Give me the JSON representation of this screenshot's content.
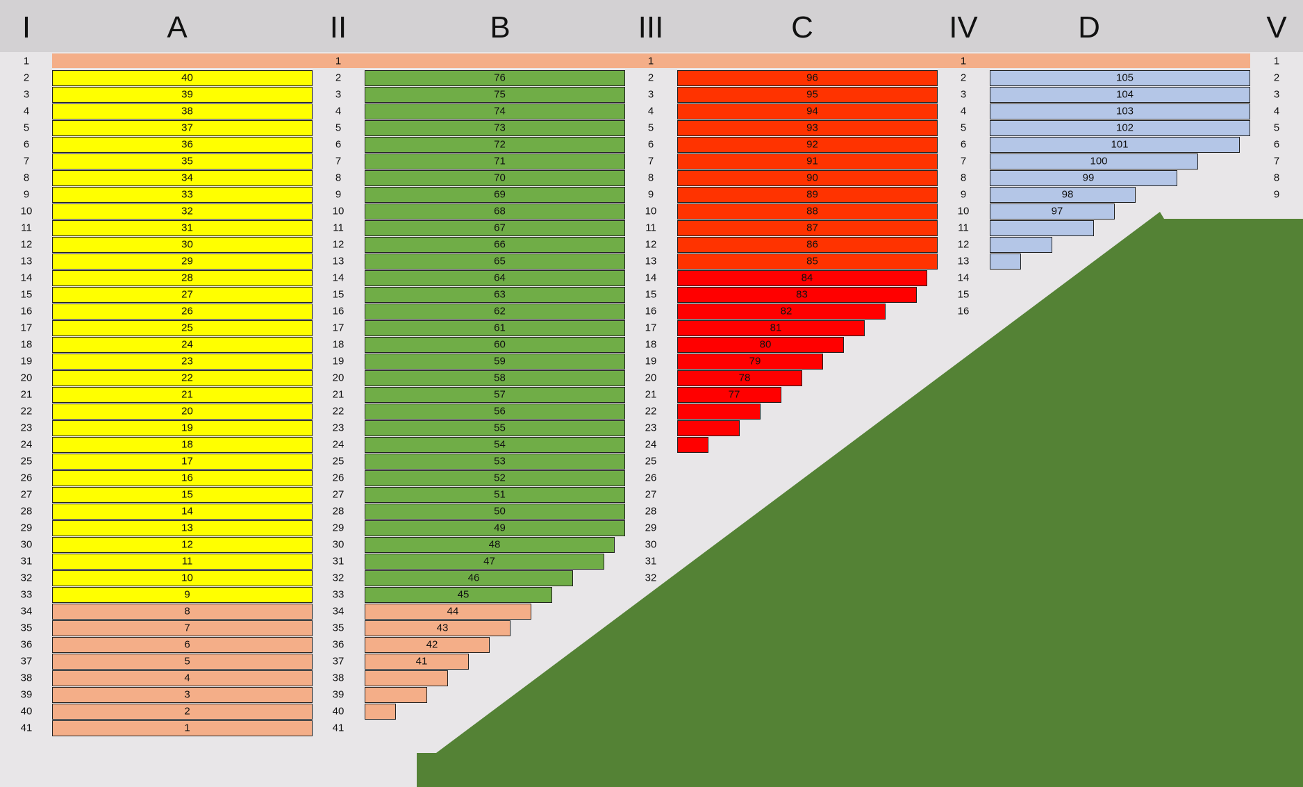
{
  "headers": [
    "I",
    "A",
    "II",
    "B",
    "III",
    "C",
    "IV",
    "D",
    "V"
  ],
  "colors": {
    "header_bg": "#d3d1d3",
    "background": "#e8e6e8",
    "peach": "#f4ae88",
    "yellow": "#ffff00",
    "green": "#70ad47",
    "orange_red": "#ff3300",
    "red": "#ff0000",
    "blue": "#b4c6e7",
    "ramp": "#548235"
  },
  "spine_row_labels": [
    "1",
    "1",
    "1",
    "1"
  ],
  "columns": [
    {
      "name": "A",
      "bars": [
        {
          "label": "40",
          "length": 40,
          "color": "yellow"
        },
        {
          "label": "39",
          "length": 40,
          "color": "yellow"
        },
        {
          "label": "38",
          "length": 40,
          "color": "yellow"
        },
        {
          "label": "37",
          "length": 40,
          "color": "yellow"
        },
        {
          "label": "36",
          "length": 40,
          "color": "yellow"
        },
        {
          "label": "35",
          "length": 40,
          "color": "yellow"
        },
        {
          "label": "34",
          "length": 40,
          "color": "yellow"
        },
        {
          "label": "33",
          "length": 40,
          "color": "yellow"
        },
        {
          "label": "32",
          "length": 40,
          "color": "yellow"
        },
        {
          "label": "31",
          "length": 40,
          "color": "yellow"
        },
        {
          "label": "30",
          "length": 40,
          "color": "yellow"
        },
        {
          "label": "29",
          "length": 40,
          "color": "yellow"
        },
        {
          "label": "28",
          "length": 40,
          "color": "yellow"
        },
        {
          "label": "27",
          "length": 40,
          "color": "yellow"
        },
        {
          "label": "26",
          "length": 40,
          "color": "yellow"
        },
        {
          "label": "25",
          "length": 40,
          "color": "yellow"
        },
        {
          "label": "24",
          "length": 40,
          "color": "yellow"
        },
        {
          "label": "23",
          "length": 40,
          "color": "yellow"
        },
        {
          "label": "22",
          "length": 40,
          "color": "yellow"
        },
        {
          "label": "21",
          "length": 40,
          "color": "yellow"
        },
        {
          "label": "20",
          "length": 40,
          "color": "yellow"
        },
        {
          "label": "19",
          "length": 40,
          "color": "yellow"
        },
        {
          "label": "18",
          "length": 40,
          "color": "yellow"
        },
        {
          "label": "17",
          "length": 40,
          "color": "yellow"
        },
        {
          "label": "16",
          "length": 40,
          "color": "yellow"
        },
        {
          "label": "15",
          "length": 40,
          "color": "yellow"
        },
        {
          "label": "14",
          "length": 40,
          "color": "yellow"
        },
        {
          "label": "13",
          "length": 40,
          "color": "yellow"
        },
        {
          "label": "12",
          "length": 40,
          "color": "yellow"
        },
        {
          "label": "11",
          "length": 40,
          "color": "yellow"
        },
        {
          "label": "10",
          "length": 40,
          "color": "yellow"
        },
        {
          "label": "9",
          "length": 40,
          "color": "yellow"
        },
        {
          "label": "8",
          "length": 40,
          "color": "peach"
        },
        {
          "label": "7",
          "length": 40,
          "color": "peach"
        },
        {
          "label": "6",
          "length": 40,
          "color": "peach"
        },
        {
          "label": "5",
          "length": 40,
          "color": "peach"
        },
        {
          "label": "4",
          "length": 40,
          "color": "peach"
        },
        {
          "label": "3",
          "length": 40,
          "color": "peach"
        },
        {
          "label": "2",
          "length": 40,
          "color": "peach"
        },
        {
          "label": "1",
          "length": 40,
          "color": "peach"
        }
      ]
    },
    {
      "name": "B",
      "bars": [
        {
          "label": "76",
          "length": 40,
          "color": "green"
        },
        {
          "label": "75",
          "length": 40,
          "color": "green"
        },
        {
          "label": "74",
          "length": 40,
          "color": "green"
        },
        {
          "label": "73",
          "length": 40,
          "color": "green"
        },
        {
          "label": "72",
          "length": 40,
          "color": "green"
        },
        {
          "label": "71",
          "length": 40,
          "color": "green"
        },
        {
          "label": "70",
          "length": 40,
          "color": "green"
        },
        {
          "label": "69",
          "length": 40,
          "color": "green"
        },
        {
          "label": "68",
          "length": 40,
          "color": "green"
        },
        {
          "label": "67",
          "length": 40,
          "color": "green"
        },
        {
          "label": "66",
          "length": 40,
          "color": "green"
        },
        {
          "label": "65",
          "length": 40,
          "color": "green"
        },
        {
          "label": "64",
          "length": 40,
          "color": "green"
        },
        {
          "label": "63",
          "length": 40,
          "color": "green"
        },
        {
          "label": "62",
          "length": 40,
          "color": "green"
        },
        {
          "label": "61",
          "length": 40,
          "color": "green"
        },
        {
          "label": "60",
          "length": 40,
          "color": "green"
        },
        {
          "label": "59",
          "length": 40,
          "color": "green"
        },
        {
          "label": "58",
          "length": 40,
          "color": "green"
        },
        {
          "label": "57",
          "length": 40,
          "color": "green"
        },
        {
          "label": "56",
          "length": 40,
          "color": "green"
        },
        {
          "label": "55",
          "length": 40,
          "color": "green"
        },
        {
          "label": "54",
          "length": 40,
          "color": "green"
        },
        {
          "label": "53",
          "length": 40,
          "color": "green"
        },
        {
          "label": "52",
          "length": 40,
          "color": "green"
        },
        {
          "label": "51",
          "length": 40,
          "color": "green"
        },
        {
          "label": "50",
          "length": 40,
          "color": "green"
        },
        {
          "label": "49",
          "length": 40,
          "color": "green"
        },
        {
          "label": "48",
          "length": 38.4,
          "color": "green"
        },
        {
          "label": "47",
          "length": 36.8,
          "color": "green"
        },
        {
          "label": "46",
          "length": 32,
          "color": "green"
        },
        {
          "label": "45",
          "length": 28.8,
          "color": "green"
        },
        {
          "label": "44",
          "length": 25.6,
          "color": "peach"
        },
        {
          "label": "43",
          "length": 22.4,
          "color": "peach"
        },
        {
          "label": "42",
          "length": 19.2,
          "color": "peach"
        },
        {
          "label": "41",
          "length": 16,
          "color": "peach"
        },
        {
          "label": "",
          "length": 12.8,
          "color": "peach"
        },
        {
          "label": "",
          "length": 9.6,
          "color": "peach"
        },
        {
          "label": "",
          "length": 4.8,
          "color": "peach"
        }
      ]
    },
    {
      "name": "C",
      "bars": [
        {
          "label": "96",
          "length": 40,
          "color": "orange_red"
        },
        {
          "label": "95",
          "length": 40,
          "color": "orange_red"
        },
        {
          "label": "94",
          "length": 40,
          "color": "orange_red"
        },
        {
          "label": "93",
          "length": 40,
          "color": "orange_red"
        },
        {
          "label": "92",
          "length": 40,
          "color": "orange_red"
        },
        {
          "label": "91",
          "length": 40,
          "color": "orange_red"
        },
        {
          "label": "90",
          "length": 40,
          "color": "orange_red"
        },
        {
          "label": "89",
          "length": 40,
          "color": "orange_red"
        },
        {
          "label": "88",
          "length": 40,
          "color": "orange_red"
        },
        {
          "label": "87",
          "length": 40,
          "color": "orange_red"
        },
        {
          "label": "86",
          "length": 40,
          "color": "orange_red"
        },
        {
          "label": "85",
          "length": 40,
          "color": "orange_red"
        },
        {
          "label": "84",
          "length": 38.4,
          "color": "red"
        },
        {
          "label": "83",
          "length": 36.8,
          "color": "red"
        },
        {
          "label": "82",
          "length": 32,
          "color": "red"
        },
        {
          "label": "81",
          "length": 28.8,
          "color": "red"
        },
        {
          "label": "80",
          "length": 25.6,
          "color": "red"
        },
        {
          "label": "79",
          "length": 22.4,
          "color": "red"
        },
        {
          "label": "78",
          "length": 19.2,
          "color": "red"
        },
        {
          "label": "77",
          "length": 16,
          "color": "red"
        },
        {
          "label": "",
          "length": 12.8,
          "color": "red"
        },
        {
          "label": "",
          "length": 9.6,
          "color": "red"
        },
        {
          "label": "",
          "length": 4.8,
          "color": "red"
        }
      ]
    },
    {
      "name": "D",
      "bars": [
        {
          "label": "105",
          "length": 40,
          "color": "blue"
        },
        {
          "label": "104",
          "length": 40,
          "color": "blue"
        },
        {
          "label": "103",
          "length": 40,
          "color": "blue"
        },
        {
          "label": "102",
          "length": 40,
          "color": "blue"
        },
        {
          "label": "101",
          "length": 38.4,
          "color": "blue"
        },
        {
          "label": "100",
          "length": 32,
          "color": "blue"
        },
        {
          "label": "99",
          "length": 28.8,
          "color": "blue"
        },
        {
          "label": "98",
          "length": 22.4,
          "color": "blue"
        },
        {
          "label": "97",
          "length": 19.2,
          "color": "blue"
        },
        {
          "label": "",
          "length": 16,
          "color": "blue"
        },
        {
          "label": "",
          "length": 9.6,
          "color": "blue"
        },
        {
          "label": "",
          "length": 4.8,
          "color": "blue"
        }
      ]
    }
  ],
  "row_label_columns": [
    {
      "name": "I",
      "labels": [
        "1",
        "2",
        "3",
        "4",
        "5",
        "6",
        "7",
        "8",
        "9",
        "10",
        "11",
        "12",
        "13",
        "14",
        "15",
        "16",
        "17",
        "18",
        "19",
        "20",
        "21",
        "22",
        "23",
        "24",
        "25",
        "26",
        "27",
        "28",
        "29",
        "30",
        "31",
        "32",
        "33",
        "34",
        "35",
        "36",
        "37",
        "38",
        "39",
        "40",
        "41"
      ]
    },
    {
      "name": "II",
      "labels": [
        "2",
        "3",
        "4",
        "5",
        "6",
        "7",
        "8",
        "9",
        "10",
        "11",
        "12",
        "13",
        "14",
        "15",
        "16",
        "17",
        "18",
        "19",
        "20",
        "21",
        "22",
        "23",
        "24",
        "25",
        "26",
        "27",
        "28",
        "29",
        "30",
        "31",
        "32",
        "33",
        "34",
        "35",
        "36",
        "37",
        "38",
        "39",
        "40",
        "41"
      ]
    },
    {
      "name": "III",
      "labels": [
        "2",
        "3",
        "4",
        "5",
        "6",
        "7",
        "8",
        "9",
        "10",
        "11",
        "12",
        "13",
        "14",
        "15",
        "16",
        "17",
        "18",
        "19",
        "20",
        "21",
        "22",
        "23",
        "24",
        "25",
        "26",
        "27",
        "28",
        "29",
        "30",
        "31",
        "32"
      ]
    },
    {
      "name": "IV",
      "labels": [
        "2",
        "3",
        "4",
        "5",
        "6",
        "7",
        "8",
        "9",
        "10",
        "11",
        "12",
        "13",
        "14",
        "15",
        "16"
      ]
    },
    {
      "name": "V",
      "labels": [
        "1",
        "2",
        "3",
        "4",
        "5",
        "6",
        "7",
        "8",
        "9"
      ]
    }
  ]
}
